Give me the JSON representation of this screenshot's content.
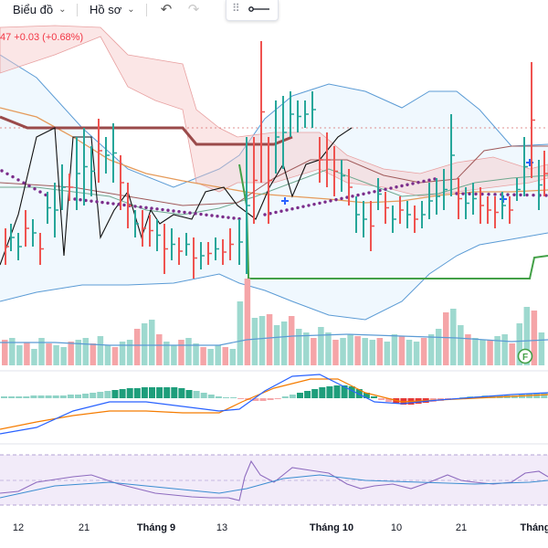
{
  "toolbar": {
    "chart_menu_label": "Biểu đồ",
    "profile_menu_label": "Hồ sơ",
    "chevron_glyph": "⌄",
    "undo_glyph": "↶",
    "redo_glyph": "↷",
    "grip_glyph": "⠿"
  },
  "legend": {
    "text": "47 +0.03 (+0.68%)"
  },
  "marker": {
    "label": "F"
  },
  "xaxis": {
    "labels": [
      "12",
      "21",
      "Tháng 9",
      "13",
      "Tháng 10",
      "10",
      "21",
      "Tháng"
    ],
    "bold": [
      false,
      false,
      true,
      false,
      true,
      false,
      false,
      true
    ]
  },
  "colors": {
    "up": "#26a69a",
    "down": "#ef5350",
    "bollinger": "#5b9bd5",
    "ichimoku_cloud_red": "#f7c7c7",
    "psar_dots": "#7b2d8b",
    "stop_line": "#43a047",
    "macd_signal": "#f57c00",
    "rsi_band": "#efe6f7"
  }
}
